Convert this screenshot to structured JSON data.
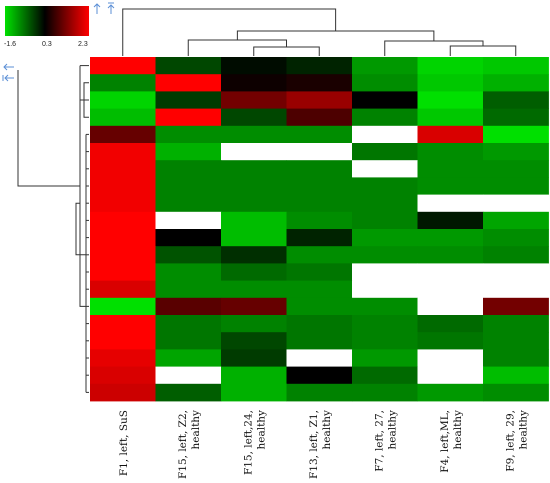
{
  "chart_data": {
    "type": "heatmap",
    "title": "",
    "color_scale": {
      "min": -1.6,
      "mid": 0.3,
      "max": 2.3,
      "labels": [
        "-1.6",
        "0.3",
        "2.3"
      ],
      "colors": {
        "low": "#00e000",
        "mid": "#000000",
        "high": "#ff0000",
        "missing": "#ffffff"
      }
    },
    "columns": [
      "F1, left, SuS",
      "F15, left, Z2, healthy",
      "F15, left,24, healthy",
      "F13, left, Z1, healthy",
      "F7, left, 27, healthy",
      "F4, left,ML, healthy",
      "F9, left, 29, healthy"
    ],
    "column_label_lines": [
      [
        "F1, left, SuS"
      ],
      [
        "F15, left, Z2,",
        "healthy"
      ],
      [
        "F15, left,24,",
        "healthy"
      ],
      [
        "F13, left, Z1,",
        "healthy"
      ],
      [
        "F7, left, 27,",
        "healthy"
      ],
      [
        "F4, left,ML,",
        "healthy"
      ],
      [
        "F9, left, 29,",
        "healthy"
      ]
    ],
    "values": [
      [
        2.3,
        -0.3,
        0.2,
        0.0,
        -1.0,
        -1.5,
        -1.4
      ],
      [
        -0.8,
        2.3,
        0.4,
        0.5,
        -0.9,
        -1.4,
        -1.2
      ],
      [
        -1.5,
        -0.2,
        1.2,
        1.5,
        0.3,
        -1.6,
        -0.5
      ],
      [
        -1.3,
        2.3,
        -0.3,
        0.9,
        -0.8,
        -1.4,
        -0.6
      ],
      [
        1.1,
        -0.9,
        -0.9,
        -0.9,
        null,
        2.0,
        -1.6
      ],
      [
        2.2,
        -1.2,
        null,
        null,
        -0.7,
        -0.9,
        -1.0
      ],
      [
        2.2,
        -0.8,
        -0.8,
        -0.8,
        null,
        -0.9,
        -0.9
      ],
      [
        2.2,
        -0.8,
        -0.8,
        -0.8,
        -0.8,
        -0.9,
        -0.9
      ],
      [
        2.2,
        -0.8,
        -0.8,
        -0.8,
        -0.8,
        null,
        null
      ],
      [
        2.3,
        null,
        -1.3,
        -0.9,
        -0.8,
        0.1,
        -1.1
      ],
      [
        2.3,
        0.3,
        -1.3,
        0.0,
        -1.0,
        -1.0,
        -0.9
      ],
      [
        2.3,
        -0.4,
        -0.1,
        -0.9,
        -0.9,
        -0.9,
        -0.8
      ],
      [
        2.3,
        -0.9,
        -0.6,
        -0.7,
        null,
        null,
        null
      ],
      [
        2.0,
        -0.9,
        -0.9,
        -0.9,
        null,
        null,
        null
      ],
      [
        -1.6,
        1.0,
        1.1,
        -0.9,
        -0.9,
        null,
        1.2
      ],
      [
        2.3,
        -0.7,
        -0.8,
        -0.7,
        -0.8,
        -0.6,
        -0.8
      ],
      [
        2.3,
        -0.7,
        -0.3,
        -0.7,
        -0.8,
        -0.7,
        -0.8
      ],
      [
        2.1,
        -1.1,
        -0.2,
        null,
        -1.0,
        null,
        -0.8
      ],
      [
        2.0,
        null,
        -1.2,
        0.3,
        -0.6,
        null,
        -1.3
      ],
      [
        1.9,
        -0.5,
        -1.2,
        -0.8,
        -0.8,
        -1.0,
        -0.9
      ]
    ],
    "legend": "top-left",
    "grid": false
  }
}
